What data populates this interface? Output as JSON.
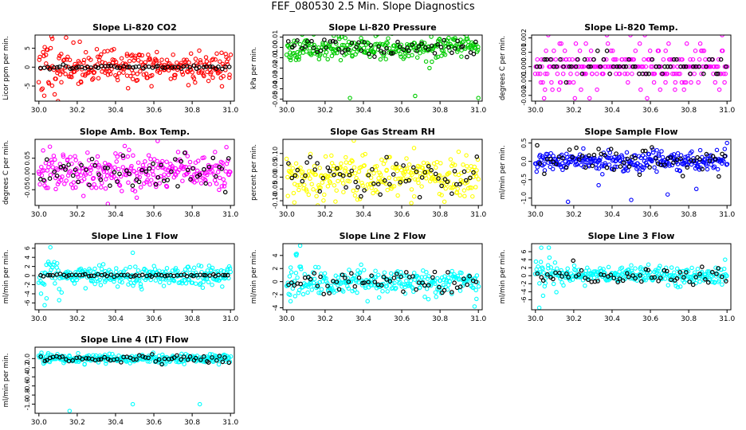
{
  "title": "FEF_080530  2.5 Min. Slope Diagnostics",
  "chart_data": [
    {
      "type": "scatter",
      "title": "Slope Li-820 CO2",
      "ylabel": "Licor ppm per min.",
      "ylim": [
        -9,
        8.5
      ],
      "yticks": [
        -5,
        0,
        5
      ],
      "ytick_labels": [
        "-5",
        "0",
        "5"
      ],
      "xlim": [
        29.98,
        31.02
      ],
      "xticks": [
        30.0,
        30.2,
        30.4,
        30.6,
        30.8,
        31.0
      ],
      "xtick_labels": [
        "30.0",
        "30.2",
        "30.4",
        "30.6",
        "30.8",
        "31.0"
      ],
      "color": "#ff0000",
      "spread": 2.2,
      "black_spread": 0.25,
      "bias": 0.0,
      "tail": "early",
      "x_range": [
        30.0,
        31.0
      ],
      "outliers": [
        [
          30.07,
          7.5
        ],
        [
          30.1,
          -9.0
        ],
        [
          30.18,
          6.5
        ],
        [
          30.05,
          -4.0
        ],
        [
          30.38,
          4.5
        ],
        [
          30.46,
          3.5
        ]
      ],
      "seed": 11
    },
    {
      "type": "scatter",
      "title": "Slope Li-820 Pressure",
      "ylabel": "kPa per min.",
      "ylim": [
        -0.052,
        0.012
      ],
      "yticks": [
        -0.05,
        -0.04,
        -0.03,
        -0.02,
        -0.01,
        0.0,
        0.01
      ],
      "ytick_labels": [
        "-0.05",
        "-0.04",
        "-0.03",
        "-0.02",
        "-0.01",
        "0.00",
        "0.01"
      ],
      "xlim": [
        29.98,
        31.02
      ],
      "xticks": [
        30.0,
        30.2,
        30.4,
        30.6,
        30.8,
        31.0
      ],
      "xtick_labels": [
        "30.0",
        "30.2",
        "30.4",
        "30.6",
        "30.8",
        "31.0"
      ],
      "color": "#00cc00",
      "spread": 0.0055,
      "black_spread": 0.004,
      "bias": 0.0,
      "tail": "none",
      "x_range": [
        30.0,
        31.0
      ],
      "outliers": [
        [
          30.33,
          -0.049
        ],
        [
          30.67,
          -0.047
        ],
        [
          31.0,
          -0.049
        ],
        [
          30.02,
          -0.01
        ]
      ],
      "seed": 23
    },
    {
      "type": "scatter",
      "title": "Slope Li-820 Temp.",
      "ylabel": "degrees C per min.",
      "ylim": [
        -0.0024,
        0.0022
      ],
      "yticks": [
        -0.002,
        -0.001,
        0.0,
        0.001,
        0.002
      ],
      "ytick_labels": [
        "-0.002",
        "-0.001",
        "0.000",
        "0.001",
        "0.002"
      ],
      "xlim": [
        29.98,
        31.02
      ],
      "xticks": [
        30.0,
        30.2,
        30.4,
        30.6,
        30.8,
        31.0
      ],
      "xtick_labels": [
        "30.0",
        "30.2",
        "30.4",
        "30.6",
        "30.8",
        "31.0"
      ],
      "color": "#ff00ff",
      "quantized": [
        0.0,
        0.0005,
        -0.0005,
        0.0011,
        -0.0011,
        0.0016,
        -0.0016,
        0.0022,
        -0.0022
      ],
      "spread": 0.0,
      "black_spread": 0.0,
      "bias": 0.0,
      "tail": "none",
      "x_range": [
        30.0,
        31.0
      ],
      "outliers": [],
      "seed": 37
    },
    {
      "type": "scatter",
      "title": "Slope Amb. Box Temp.",
      "ylabel": "degrees C per min.",
      "ylim": [
        -0.1,
        0.11
      ],
      "yticks": [
        -0.05,
        0.0,
        0.05
      ],
      "ytick_labels": [
        "-0.05",
        "0.00",
        "0.05"
      ],
      "xlim": [
        29.98,
        31.02
      ],
      "xticks": [
        30.0,
        30.2,
        30.4,
        30.6,
        30.8,
        31.0
      ],
      "xtick_labels": [
        "30.0",
        "30.2",
        "30.4",
        "30.6",
        "30.8",
        "31.0"
      ],
      "color": "#ff00ff",
      "spread": 0.032,
      "black_spread": 0.028,
      "bias": 0.005,
      "tail": "none",
      "x_range": [
        30.0,
        31.0
      ],
      "outliers": [
        [
          30.62,
          0.105
        ],
        [
          30.36,
          -0.095
        ]
      ],
      "seed": 41
    },
    {
      "type": "scatter",
      "title": "Slope Gas Stream RH",
      "ylabel": "percent per min.",
      "ylim": [
        -0.12,
        0.16
      ],
      "yticks": [
        -0.1,
        -0.05,
        0.0,
        0.05,
        0.1
      ],
      "ytick_labels": [
        "-0.10",
        "-0.05",
        "0.00",
        "0.05",
        "0.10"
      ],
      "xlim": [
        29.98,
        31.02
      ],
      "xticks": [
        30.0,
        30.2,
        30.4,
        30.6,
        30.8,
        31.0
      ],
      "xtick_labels": [
        "30.0",
        "30.2",
        "30.4",
        "30.6",
        "30.8",
        "31.0"
      ],
      "color": "#ffff00",
      "spread": 0.045,
      "black_spread": 0.04,
      "bias": 0.0,
      "tail": "none",
      "x_range": [
        30.0,
        31.0
      ],
      "outliers": [
        [
          30.35,
          0.155
        ],
        [
          30.65,
          -0.11
        ]
      ],
      "seed": 53
    },
    {
      "type": "scatter",
      "title": "Slope Sample Flow",
      "ylabel": "ml/min per min.",
      "ylim": [
        -1.2,
        0.6
      ],
      "yticks": [
        -1.0,
        -0.5,
        0.0,
        0.5
      ],
      "ytick_labels": [
        "-1.0",
        "-0.5",
        "0.0",
        "0.5"
      ],
      "xlim": [
        29.98,
        31.02
      ],
      "xticks": [
        30.0,
        30.2,
        30.4,
        30.6,
        30.8,
        31.0
      ],
      "xtick_labels": [
        "30.0",
        "30.2",
        "30.4",
        "30.6",
        "30.8",
        "31.0"
      ],
      "color": "#0000ff",
      "spread": 0.12,
      "black_spread": 0.2,
      "bias": 0.0,
      "tail": "none",
      "x_range": [
        30.0,
        31.0
      ],
      "outliers": [
        [
          30.17,
          -1.1
        ],
        [
          30.5,
          -1.05
        ],
        [
          30.69,
          -0.9
        ],
        [
          30.84,
          -0.75
        ],
        [
          30.33,
          -0.65
        ],
        [
          31.0,
          0.5
        ],
        [
          30.25,
          0.35
        ]
      ],
      "seed": 67
    },
    {
      "type": "scatter",
      "title": "Slope Line 1 Flow",
      "ylabel": "ml/min per min.",
      "ylim": [
        -7.5,
        7
      ],
      "yticks": [
        -6,
        -4,
        -2,
        0,
        2,
        4,
        6
      ],
      "ytick_labels": [
        "-6",
        "-4",
        "-2",
        "0",
        "2",
        "4",
        "6"
      ],
      "xlim": [
        29.98,
        31.02
      ],
      "xticks": [
        30.0,
        30.2,
        30.4,
        30.6,
        30.8,
        31.0
      ],
      "xtick_labels": [
        "30.0",
        "30.2",
        "30.4",
        "30.6",
        "30.8",
        "31.0"
      ],
      "color": "#00ffff",
      "spread": 1.1,
      "black_spread": 0.15,
      "bias": 0.0,
      "tail": "early",
      "x_range": [
        30.0,
        31.0
      ],
      "outliers": [
        [
          30.06,
          6.2
        ],
        [
          30.03,
          -6.5
        ],
        [
          30.49,
          5.0
        ],
        [
          30.04,
          -5.0
        ]
      ],
      "seed": 71
    },
    {
      "type": "scatter",
      "title": "Slope Line 2 Flow",
      "ylabel": "ml/min per min.",
      "ylim": [
        -4.3,
        5.8
      ],
      "yticks": [
        -4,
        -2,
        0,
        2,
        4
      ],
      "ytick_labels": [
        "-4",
        "-2",
        "0",
        "2",
        "4"
      ],
      "xlim": [
        29.98,
        31.02
      ],
      "xticks": [
        30.0,
        30.2,
        30.4,
        30.6,
        30.8,
        31.0
      ],
      "xtick_labels": [
        "30.0",
        "30.2",
        "30.4",
        "30.6",
        "30.8",
        "31.0"
      ],
      "color": "#00ffff",
      "spread": 0.9,
      "black_spread": 0.8,
      "bias": 0.0,
      "tail": "early",
      "x_range": [
        30.0,
        31.0
      ],
      "outliers": [
        [
          30.07,
          5.5
        ],
        [
          30.05,
          4.0
        ],
        [
          30.02,
          -3.0
        ],
        [
          30.98,
          -3.8
        ]
      ],
      "seed": 83
    },
    {
      "type": "scatter",
      "title": "Slope Line 3 Flow",
      "ylabel": "ml/min per min.",
      "ylim": [
        -8.5,
        8
      ],
      "yticks": [
        -6,
        -4,
        -2,
        0,
        2,
        4,
        6
      ],
      "ytick_labels": [
        "-6",
        "-4",
        "-2",
        "0",
        "2",
        "4",
        "6"
      ],
      "xlim": [
        29.98,
        31.02
      ],
      "xticks": [
        30.0,
        30.2,
        30.4,
        30.6,
        30.8,
        31.0
      ],
      "xtick_labels": [
        "30.0",
        "30.2",
        "30.4",
        "30.6",
        "30.8",
        "31.0"
      ],
      "color": "#00ffff",
      "spread": 1.2,
      "black_spread": 1.0,
      "bias": 0.0,
      "tail": "early",
      "x_range": [
        30.0,
        31.0
      ],
      "outliers": [
        [
          30.07,
          7.0
        ],
        [
          30.02,
          -8.0
        ],
        [
          30.04,
          -5.0
        ],
        [
          30.99,
          4.0
        ]
      ],
      "seed": 97
    },
    {
      "type": "scatter",
      "title": "Slope Line 4 (LT) Flow",
      "ylabel": "ml/min per min.",
      "ylim": [
        -1.2,
        0.25
      ],
      "yticks": [
        -1.0,
        -0.8,
        -0.6,
        -0.4,
        -0.2,
        0.0
      ],
      "ytick_labels": [
        "-1.0",
        "-0.8",
        "-0.6",
        "-0.4",
        "-0.2",
        "0.0"
      ],
      "xlim": [
        29.98,
        31.02
      ],
      "xticks": [
        30.0,
        30.2,
        30.4,
        30.6,
        30.8,
        31.0
      ],
      "xtick_labels": [
        "30.0",
        "30.2",
        "30.4",
        "30.6",
        "30.8",
        "31.0"
      ],
      "color": "#00ffff",
      "spread": 0.05,
      "black_spread": 0.05,
      "bias": 0.0,
      "tail": "none",
      "x_range": [
        30.0,
        31.0
      ],
      "outliers": [
        [
          30.16,
          -1.15
        ],
        [
          30.49,
          -1.0
        ],
        [
          30.84,
          -1.0
        ]
      ],
      "seed": 101
    }
  ]
}
